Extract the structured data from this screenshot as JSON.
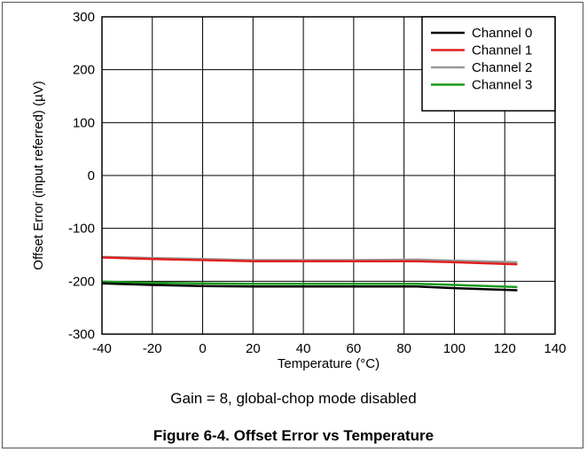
{
  "caption": "Figure 6-4. Offset Error vs Temperature",
  "note": "Gain = 8, global-chop mode disabled",
  "chart_data": {
    "type": "line",
    "title": "",
    "xlabel": "Temperature (°C)",
    "ylabel": "Offset Error (input referred) (µV)",
    "xlim": [
      -40,
      140
    ],
    "ylim": [
      -300,
      300
    ],
    "xticks": [
      -40,
      -20,
      0,
      20,
      40,
      60,
      80,
      100,
      120,
      140
    ],
    "yticks": [
      300,
      200,
      100,
      0,
      -100,
      -200,
      -300
    ],
    "grid": true,
    "legend_position": "top-right",
    "series": [
      {
        "name": "Channel 2",
        "color": "#999999",
        "x": [
          -40,
          -20,
          0,
          20,
          40,
          60,
          85,
          100,
          125
        ],
        "y": [
          -154,
          -156,
          -158,
          -160,
          -160,
          -160,
          -159,
          -161,
          -164
        ]
      },
      {
        "name": "Channel 1",
        "color": "#e02020",
        "x": [
          -40,
          -20,
          0,
          20,
          40,
          60,
          85,
          100,
          125
        ],
        "y": [
          -155,
          -158,
          -160,
          -162,
          -162,
          -162,
          -162,
          -164,
          -168
        ]
      },
      {
        "name": "Channel 3",
        "color": "#1a9a1a",
        "x": [
          -40,
          -20,
          0,
          20,
          40,
          60,
          85,
          100,
          125
        ],
        "y": [
          -201,
          -203,
          -204,
          -205,
          -205,
          -205,
          -205,
          -207,
          -211
        ]
      },
      {
        "name": "Channel 0",
        "color": "#000000",
        "x": [
          -40,
          -20,
          0,
          20,
          40,
          60,
          85,
          100,
          125
        ],
        "y": [
          -204,
          -207,
          -209,
          -210,
          -210,
          -210,
          -210,
          -213,
          -217
        ]
      }
    ],
    "legend_order": [
      "Channel 0",
      "Channel 1",
      "Channel 2",
      "Channel 3"
    ]
  }
}
